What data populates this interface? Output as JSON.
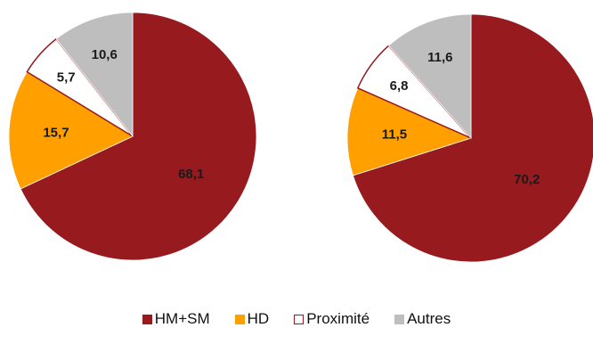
{
  "chart_data": [
    {
      "type": "pie",
      "title": "",
      "categories": [
        "HM+SM",
        "HD",
        "Proximité",
        "Autres"
      ],
      "values": [
        68.1,
        15.7,
        5.7,
        10.6
      ],
      "labels": [
        "68,1",
        "15,7",
        "5,7",
        "10,6"
      ],
      "start": "12 o'clock, clockwise"
    },
    {
      "type": "pie",
      "title": "",
      "categories": [
        "HM+SM",
        "HD",
        "Proximité",
        "Autres"
      ],
      "values": [
        70.2,
        11.5,
        6.8,
        11.6
      ],
      "labels": [
        "70,2",
        "11,5",
        "6,8",
        "11,6"
      ],
      "start": "12 o'clock, clockwise"
    }
  ],
  "legend": {
    "placement": "bottom",
    "items": [
      {
        "label": "HM+SM",
        "color": "#961A1E",
        "style": "filled"
      },
      {
        "label": "HD",
        "color": "#FF9F00",
        "style": "filled"
      },
      {
        "label": "Proximité",
        "color": "#961A1E",
        "style": "outline"
      },
      {
        "label": "Autres",
        "color": "#BEBEBE",
        "style": "filled"
      }
    ]
  },
  "colors": {
    "HM+SM": "#961A1E",
    "HD": "#FF9F00",
    "Proximité": "#FFFFFF",
    "Proximité_border": "#961A1E",
    "Autres": "#BEBEBE"
  }
}
